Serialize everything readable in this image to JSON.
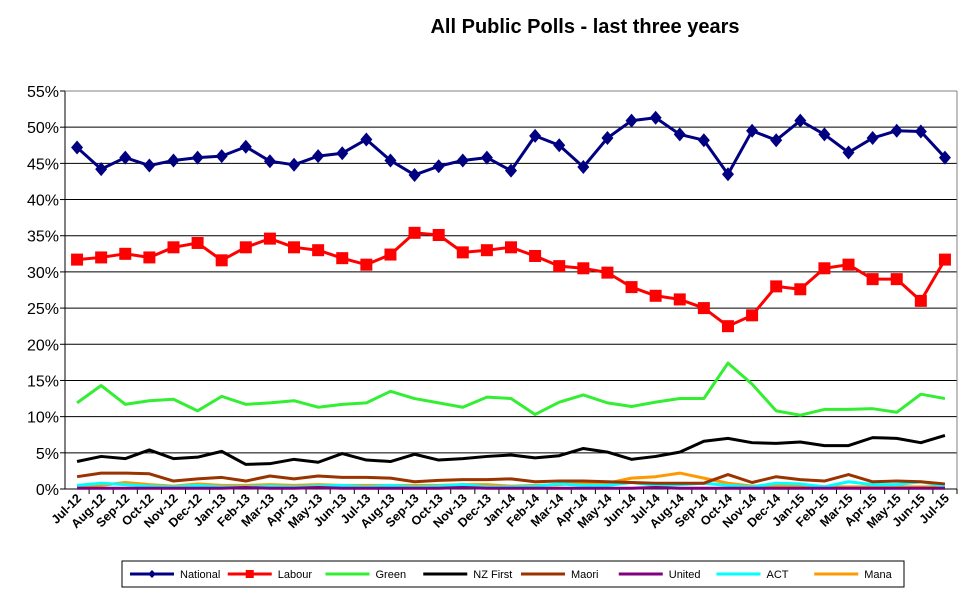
{
  "chart_data": {
    "type": "line",
    "title": "All Public Polls - last three years",
    "xlabel": "",
    "ylabel": "",
    "ylim": [
      0,
      55
    ],
    "yticks": [
      "0%",
      "5%",
      "10%",
      "15%",
      "20%",
      "25%",
      "30%",
      "35%",
      "40%",
      "45%",
      "50%",
      "55%"
    ],
    "grid": true,
    "legend_position": "bottom",
    "categories": [
      "Jul-12",
      "Aug-12",
      "Sep-12",
      "Oct-12",
      "Nov-12",
      "Dec-12",
      "Jan-13",
      "Feb-13",
      "Mar-13",
      "Apr-13",
      "May-13",
      "Jun-13",
      "Jul-13",
      "Aug-13",
      "Sep-13",
      "Oct-13",
      "Nov-13",
      "Dec-13",
      "Jan-14",
      "Feb-14",
      "Mar-14",
      "Apr-14",
      "May-14",
      "Jun-14",
      "Jul-14",
      "Aug-14",
      "Sep-14",
      "Oct-14",
      "Nov-14",
      "Dec-14",
      "Jan-15",
      "Feb-15",
      "Mar-15",
      "Apr-15",
      "May-15",
      "Jun-15",
      "Jul-15"
    ],
    "series": [
      {
        "name": "National",
        "color": "#000080",
        "marker": "diamond",
        "values": [
          47.2,
          44.2,
          45.8,
          44.7,
          45.4,
          45.8,
          46.0,
          47.3,
          45.3,
          44.8,
          46.0,
          46.4,
          48.3,
          45.4,
          43.4,
          44.6,
          45.4,
          45.8,
          44.0,
          48.8,
          47.5,
          44.5,
          48.5,
          50.9,
          51.3,
          49.0,
          48.2,
          43.5,
          49.5,
          48.2,
          50.9,
          49.0,
          46.5,
          48.5,
          49.5,
          49.4,
          45.8
        ]
      },
      {
        "name": "Labour",
        "color": "#FF0000",
        "marker": "square",
        "values": [
          31.7,
          32.0,
          32.5,
          32.0,
          33.4,
          34.0,
          31.6,
          33.4,
          34.6,
          33.4,
          33.0,
          31.9,
          31.0,
          32.4,
          35.4,
          35.1,
          32.7,
          33.0,
          33.4,
          32.2,
          30.8,
          30.5,
          29.9,
          27.9,
          26.7,
          26.2,
          25.0,
          22.5,
          24.0,
          28.0,
          27.6,
          30.5,
          31.0,
          29.0,
          29.0,
          26.0,
          31.7
        ]
      },
      {
        "name": "Green",
        "color": "#33EE33",
        "marker": "none",
        "values": [
          11.9,
          14.3,
          11.7,
          12.2,
          12.4,
          10.8,
          12.8,
          11.7,
          11.9,
          12.2,
          11.3,
          11.7,
          11.9,
          13.5,
          12.5,
          11.9,
          11.3,
          12.7,
          12.5,
          10.3,
          12.0,
          13.0,
          11.9,
          11.4,
          12.0,
          12.5,
          12.5,
          17.4,
          14.5,
          10.8,
          10.2,
          11.0,
          11.0,
          11.1,
          10.6,
          13.1,
          12.5
        ]
      },
      {
        "name": "NZ First",
        "color": "#000000",
        "marker": "none",
        "values": [
          3.8,
          4.5,
          4.2,
          5.4,
          4.2,
          4.4,
          5.2,
          3.4,
          3.5,
          4.1,
          3.7,
          4.9,
          4.0,
          3.8,
          4.8,
          4.0,
          4.2,
          4.5,
          4.7,
          4.3,
          4.6,
          5.6,
          5.1,
          4.1,
          4.5,
          5.1,
          6.6,
          7.0,
          6.4,
          6.3,
          6.5,
          6.0,
          6.0,
          7.1,
          7.0,
          6.4,
          7.4
        ]
      },
      {
        "name": "Maori",
        "color": "#993300",
        "marker": "none",
        "values": [
          1.7,
          2.2,
          2.2,
          2.1,
          1.1,
          1.4,
          1.6,
          1.1,
          1.8,
          1.4,
          1.8,
          1.6,
          1.6,
          1.5,
          1.0,
          1.2,
          1.3,
          1.3,
          1.4,
          1.0,
          1.1,
          1.1,
          1.0,
          0.9,
          0.8,
          0.8,
          0.8,
          2.0,
          0.9,
          1.7,
          1.3,
          1.1,
          2.0,
          1.0,
          1.1,
          1.0,
          0.7
        ]
      },
      {
        "name": "United",
        "color": "#800080",
        "marker": "none",
        "values": [
          0.1,
          0.1,
          0.1,
          0.1,
          0.1,
          0.1,
          0.1,
          0.2,
          0.1,
          0.1,
          0.2,
          0.1,
          0.1,
          0.1,
          0.1,
          0.1,
          0.2,
          0.1,
          0.1,
          0.1,
          0.1,
          0.1,
          0.1,
          0.1,
          0.2,
          0.1,
          0.1,
          0.1,
          0.1,
          0.1,
          0.1,
          0.1,
          0.1,
          0.1,
          0.1,
          0.1,
          0.1
        ]
      },
      {
        "name": "ACT",
        "color": "#00FFFF",
        "marker": "none",
        "values": [
          0.5,
          0.8,
          0.6,
          0.4,
          0.3,
          0.5,
          0.3,
          0.3,
          0.4,
          0.3,
          0.4,
          0.5,
          0.3,
          0.5,
          0.3,
          0.4,
          0.6,
          0.3,
          0.3,
          0.4,
          0.7,
          0.5,
          0.5,
          0.9,
          0.5,
          0.6,
          0.8,
          0.5,
          0.3,
          0.8,
          0.7,
          0.3,
          1.0,
          0.6,
          0.6,
          1.0,
          0.4
        ]
      },
      {
        "name": "Mana",
        "color": "#FF9900",
        "marker": "none",
        "values": [
          0.4,
          0.5,
          0.9,
          0.6,
          0.4,
          0.7,
          0.5,
          0.5,
          0.6,
          0.5,
          0.6,
          0.5,
          0.5,
          0.5,
          0.5,
          0.5,
          0.6,
          0.6,
          0.4,
          0.5,
          0.6,
          0.9,
          0.8,
          1.5,
          1.7,
          2.2,
          1.5,
          0.8,
          0.4,
          0.5,
          0.4,
          0.3,
          0.3,
          0.3,
          0.3,
          0.3,
          0.3
        ]
      }
    ]
  }
}
